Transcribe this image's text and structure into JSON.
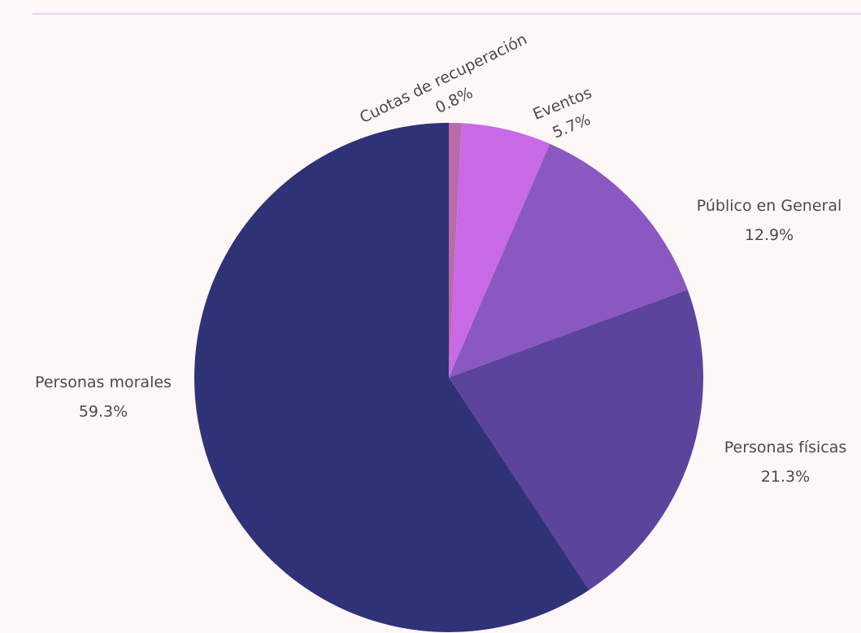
{
  "chart_data": {
    "type": "pie",
    "slices": [
      {
        "label": "Cuotas de recuperación",
        "value": 0.8,
        "value_text": "0.8%",
        "color": "#b96aa8"
      },
      {
        "label": "Eventos",
        "value": 5.7,
        "value_text": "5.7%",
        "color": "#c86ae6"
      },
      {
        "label": "Público en General",
        "value": 12.9,
        "value_text": "12.9%",
        "color": "#8a58c1"
      },
      {
        "label": "Personas físicas",
        "value": 21.3,
        "value_text": "21.3%",
        "color": "#5c449d"
      },
      {
        "label": "Personas morales",
        "value": 59.3,
        "value_text": "59.3%",
        "color": "#2f3276"
      }
    ],
    "start": "12 o'clock",
    "direction": "clockwise",
    "legend": "none"
  }
}
